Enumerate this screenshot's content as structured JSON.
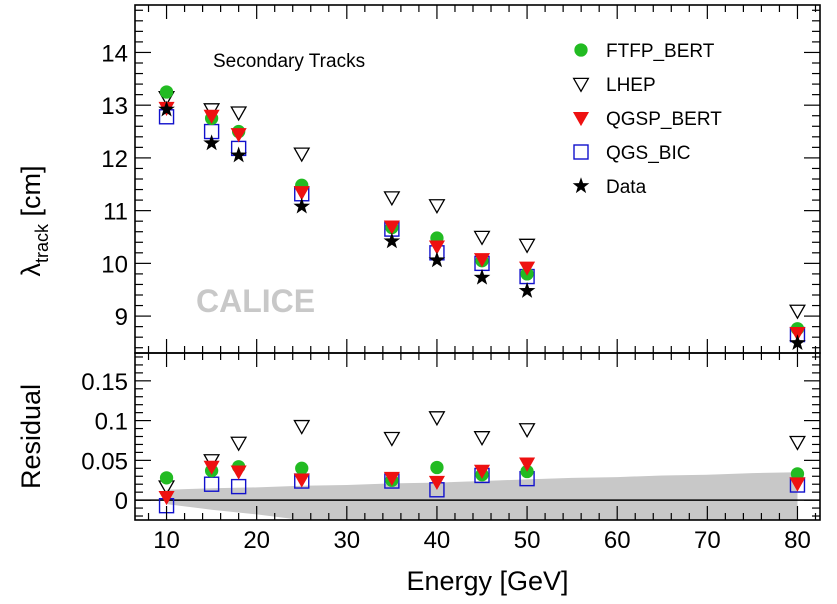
{
  "chart_data": {
    "type": "scatter",
    "xlabel": "Energy [GeV]",
    "x_ticks": [
      10,
      20,
      30,
      40,
      50,
      60,
      70,
      80
    ],
    "xlim": [
      6.5,
      82.5
    ],
    "annotation": "Secondary Tracks",
    "watermark": "CALICE",
    "legend_position": "top-right",
    "panels": [
      {
        "id": "top",
        "ylabel_main": "λ",
        "ylabel_sub": "track",
        "ylabel_unit": " [cm]",
        "ylim": [
          8.3,
          14.9
        ],
        "y_ticks": [
          "9",
          "10",
          "11",
          "12",
          "13",
          "14"
        ],
        "y_tick_values": [
          9,
          10,
          11,
          12,
          13,
          14
        ]
      },
      {
        "id": "bottom",
        "ylabel": "Residual",
        "ylim": [
          -0.025,
          0.185
        ],
        "y_ticks": [
          "0",
          "0.05",
          "0.1",
          "0.15"
        ],
        "y_tick_values": [
          0,
          0.05,
          0.1,
          0.15
        ],
        "zero_line": true,
        "band": {
          "x": [
            10,
            15,
            20,
            25,
            30,
            35,
            40,
            45,
            50,
            55,
            60,
            65,
            70,
            75,
            80
          ],
          "upper": [
            0.013,
            0.015,
            0.016,
            0.018,
            0.019,
            0.021,
            0.022,
            0.024,
            0.026,
            0.028,
            0.029,
            0.031,
            0.032,
            0.034,
            0.035
          ],
          "lower": [
            -0.005,
            -0.012,
            -0.018,
            -0.025,
            -0.025,
            -0.025,
            -0.025,
            -0.025,
            -0.025,
            -0.025,
            -0.025,
            -0.025,
            -0.025,
            -0.025,
            -0.025
          ]
        }
      }
    ],
    "series": [
      {
        "name": "FTFP_BERT",
        "marker": "circle",
        "color": "#22bb22",
        "x": [
          10,
          15,
          18,
          25,
          35,
          40,
          45,
          50,
          80
        ],
        "y": [
          13.25,
          12.75,
          12.5,
          11.48,
          10.68,
          10.48,
          10.05,
          9.8,
          8.76
        ],
        "residual": [
          0.028,
          0.037,
          0.042,
          0.04,
          0.025,
          0.041,
          0.032,
          0.036,
          0.033
        ]
      },
      {
        "name": "LHEP",
        "marker": "triangle-down-open",
        "color": "#000000",
        "x": [
          10,
          15,
          18,
          25,
          35,
          40,
          45,
          50,
          80
        ],
        "y": [
          13.15,
          12.92,
          12.86,
          12.08,
          11.25,
          11.1,
          10.5,
          10.35,
          9.1
        ],
        "residual": [
          0.017,
          0.05,
          0.072,
          0.093,
          0.078,
          0.104,
          0.079,
          0.089,
          0.073
        ]
      },
      {
        "name": "QGSP_BERT",
        "marker": "triangle-down",
        "color": "#ee1111",
        "x": [
          10,
          15,
          18,
          25,
          35,
          40,
          45,
          50,
          80
        ],
        "y": [
          12.95,
          12.8,
          12.45,
          11.35,
          10.7,
          10.32,
          10.08,
          9.92,
          8.68
        ],
        "residual": [
          0.004,
          0.042,
          0.036,
          0.026,
          0.028,
          0.023,
          0.037,
          0.046,
          0.021
        ]
      },
      {
        "name": "QGS_BIC",
        "marker": "square-open",
        "color": "#1111cc",
        "x": [
          10,
          15,
          18,
          25,
          35,
          40,
          45,
          50,
          80
        ],
        "y": [
          12.78,
          12.5,
          12.18,
          11.32,
          10.65,
          10.2,
          10.0,
          9.75,
          8.65
        ],
        "residual": [
          -0.007,
          0.02,
          0.017,
          0.024,
          0.024,
          0.013,
          0.031,
          0.027,
          0.019
        ]
      },
      {
        "name": "Data",
        "marker": "star",
        "color": "#000000",
        "x": [
          10,
          15,
          18,
          25,
          35,
          40,
          45,
          50,
          80
        ],
        "y": [
          12.92,
          12.28,
          12.05,
          11.08,
          10.42,
          10.06,
          9.73,
          9.48,
          8.49
        ],
        "residual": []
      }
    ]
  }
}
